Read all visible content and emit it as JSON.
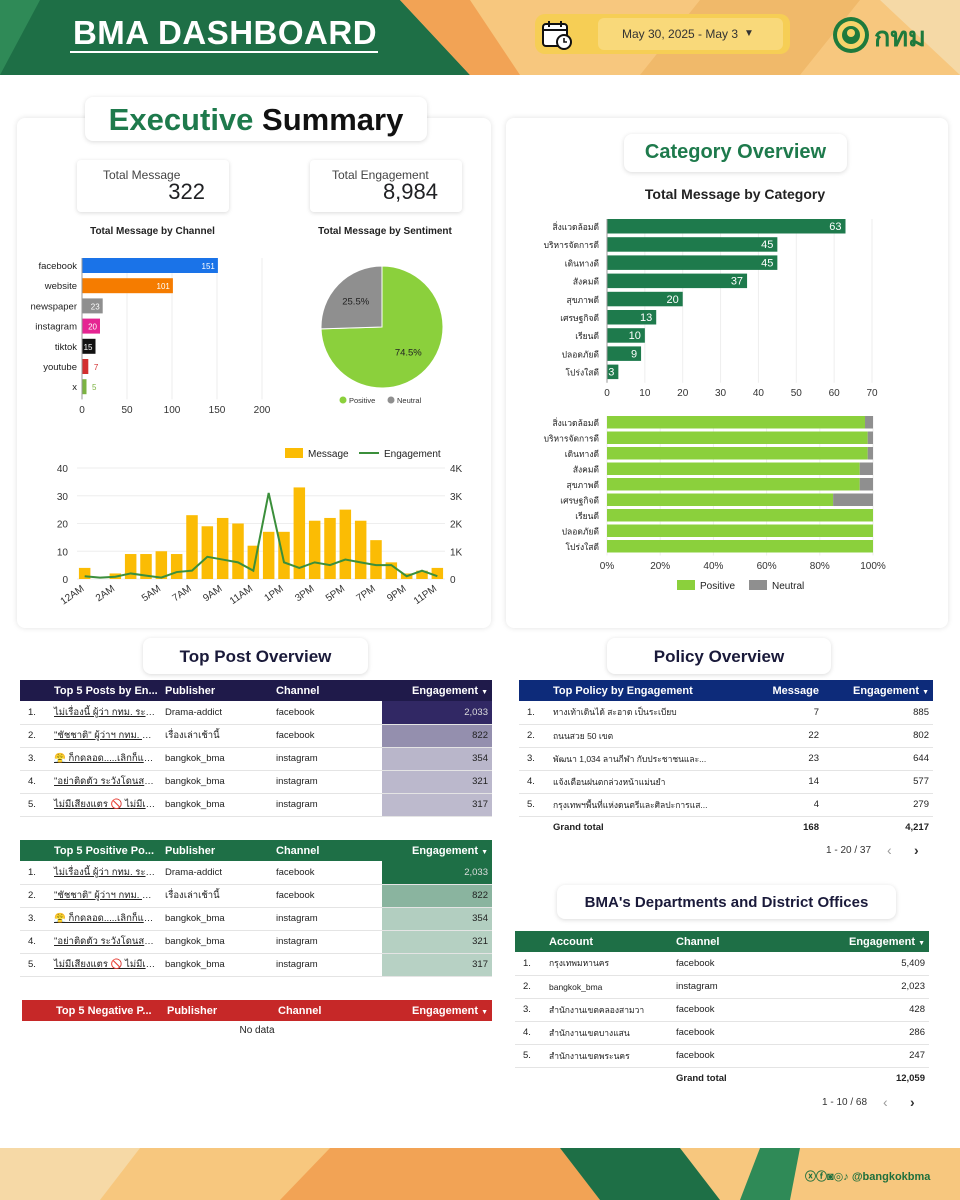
{
  "header": {
    "title": "BMA DASHBOARD",
    "date_range": "May 30, 2025 - May 3",
    "logo_text": "กทม",
    "colors": {
      "green": "#1e6f46",
      "orange": "#f2a355",
      "yellow": "#f6ce55"
    }
  },
  "executive": {
    "title_a": "Executive",
    "title_b": "Summary",
    "kpis": [
      {
        "label": "Total Message",
        "value": "322"
      },
      {
        "label": "Total Engagement",
        "value": "8,984"
      }
    ],
    "channel_title": "Total Message by Channel",
    "sentiment_title": "Total Message by Sentiment"
  },
  "category": {
    "title": "Category Overview",
    "chart_title": "Total Message by Category"
  },
  "top_post": {
    "title": "Top Post Overview",
    "tables": [
      {
        "headers": [
          "Top 5 Posts by En...",
          "Publisher",
          "Channel",
          "Engagement"
        ],
        "rows": [
          [
            "1.",
            "ไม่เรื่องนี้ ผู้ว่า กทม. ระบุว่า...",
            "Drama-addict",
            "facebook",
            "2,033"
          ],
          [
            "2.",
            "\"ชัชชาติ\" ผู้ว่าฯ กทม. แจง...",
            "เรื่องเล่าเช้านี้",
            "facebook",
            "822"
          ],
          [
            "3.",
            "😤 ก็กดลอด.....เลิกก็แล้ว...",
            "bangkok_bma",
            "instagram",
            "354"
          ],
          [
            "4.",
            "\"อย่าติดตัว ระวังโดนสอย!...",
            "bangkok_bma",
            "instagram",
            "321"
          ],
          [
            "5.",
            "ไม่มีเสียงแตร 🚫 ไม่มีเสีย...",
            "bangkok_bma",
            "instagram",
            "317"
          ]
        ]
      },
      {
        "headers": [
          "Top 5 Positive Po...",
          "Publisher",
          "Channel",
          "Engagement"
        ],
        "rows": [
          [
            "1.",
            "ไม่เรื่องนี้ ผู้ว่า กทม. ระบุว่า...",
            "Drama-addict",
            "facebook",
            "2,033"
          ],
          [
            "2.",
            "\"ชัชชาติ\" ผู้ว่าฯ กทม. แจง...",
            "เรื่องเล่าเช้านี้",
            "facebook",
            "822"
          ],
          [
            "3.",
            "😤 ก็กดลอด.....เลิกก็แล้ว...",
            "bangkok_bma",
            "instagram",
            "354"
          ],
          [
            "4.",
            "\"อย่าติดตัว ระวังโดนสอย!...",
            "bangkok_bma",
            "instagram",
            "321"
          ],
          [
            "5.",
            "ไม่มีเสียงแตร 🚫 ไม่มีเสีย...",
            "bangkok_bma",
            "instagram",
            "317"
          ]
        ]
      },
      {
        "headers": [
          "Top 5 Negative P...",
          "Publisher",
          "Channel",
          "Engagement"
        ],
        "rows": [],
        "empty": "No data"
      }
    ]
  },
  "policy": {
    "title": "Policy Overview",
    "headers": [
      "Top Policy by Engagement",
      "Message",
      "Engagement"
    ],
    "rows": [
      [
        "1.",
        "ทางเท้าเดินได้ สะอาด เป็นระเบียบ",
        "7",
        "885"
      ],
      [
        "2.",
        "ถนนสวย 50 เขต",
        "22",
        "802"
      ],
      [
        "3.",
        "พัฒนา 1,034 ลานกีฬา กับประชาชนและ...",
        "23",
        "644"
      ],
      [
        "4.",
        "แจ้งเตือนฝนตกล่วงหน้าแม่นยำ",
        "14",
        "577"
      ],
      [
        "5.",
        "กรุงเทพฯพื้นที่แห่งดนตรีและศิลปะการแส...",
        "4",
        "279"
      ]
    ],
    "total": [
      "Grand total",
      "168",
      "4,217"
    ],
    "pager": "1 - 20 / 37"
  },
  "departments": {
    "title": "BMA's Departments and District Offices",
    "headers": [
      "Account",
      "Channel",
      "Engagement"
    ],
    "rows": [
      [
        "1.",
        "กรุงเทพมหานคร",
        "facebook",
        "5,409"
      ],
      [
        "2.",
        "bangkok_bma",
        "instagram",
        "2,023"
      ],
      [
        "3.",
        "สำนักงานเขตคลองสามวา",
        "facebook",
        "428"
      ],
      [
        "4.",
        "สำนักงานเขตบางแสน",
        "facebook",
        "286"
      ],
      [
        "5.",
        "สำนักงานเขตพระนคร",
        "facebook",
        "247"
      ]
    ],
    "total": [
      "Grand total",
      "12,059"
    ],
    "pager": "1 - 10 / 68"
  },
  "footer": {
    "handle": "@bangkokbma"
  },
  "chart_data": [
    {
      "type": "bar",
      "orientation": "horizontal",
      "title": "Total Message by Channel",
      "categories": [
        "facebook",
        "website",
        "newspaper",
        "instagram",
        "tiktok",
        "youtube",
        "x"
      ],
      "values": [
        151,
        101,
        23,
        20,
        15,
        7,
        5
      ],
      "colors": [
        "#1a73e8",
        "#f57c00",
        "#8f8f8f",
        "#e52592",
        "#111111",
        "#d32f2f",
        "#7cb342"
      ],
      "xlim": [
        0,
        200
      ],
      "xticks": [
        0,
        50,
        100,
        150,
        200
      ]
    },
    {
      "type": "pie",
      "title": "Total Message by Sentiment",
      "labels": [
        "Positive",
        "Neutral"
      ],
      "values": [
        74.5,
        25.5
      ],
      "colors": [
        "#8bd03c",
        "#8f8f8f"
      ],
      "legend": "bottom"
    },
    {
      "type": "bar+line",
      "x": [
        "12AM",
        "1AM",
        "2AM",
        "3AM",
        "4AM",
        "5AM",
        "6AM",
        "7AM",
        "8AM",
        "9AM",
        "10AM",
        "11AM",
        "12PM",
        "1PM",
        "2PM",
        "3PM",
        "4PM",
        "5PM",
        "6PM",
        "7PM",
        "8PM",
        "9PM",
        "10PM",
        "11PM"
      ],
      "xtick_labels": [
        "12AM",
        "2AM",
        "5AM",
        "7AM",
        "9AM",
        "11AM",
        "1PM",
        "3PM",
        "5PM",
        "7PM",
        "9PM",
        "11PM"
      ],
      "series": [
        {
          "name": "Message",
          "type": "bar",
          "axis": "left",
          "color": "#fbbc04",
          "values": [
            4,
            0,
            2,
            9,
            9,
            10,
            9,
            23,
            19,
            22,
            20,
            12,
            17,
            17,
            33,
            21,
            22,
            25,
            21,
            14,
            6,
            2,
            3,
            4
          ]
        },
        {
          "name": "Engagement",
          "type": "line",
          "axis": "right",
          "color": "#3b8f3b",
          "values": [
            100,
            50,
            80,
            200,
            120,
            50,
            250,
            300,
            800,
            700,
            600,
            300,
            3100,
            600,
            400,
            600,
            500,
            700,
            600,
            500,
            500,
            100,
            300,
            100
          ]
        }
      ],
      "ylim_left": [
        0,
        40
      ],
      "yticks_left": [
        0,
        10,
        20,
        30,
        40
      ],
      "ylim_right": [
        0,
        4000
      ],
      "yticks_right": [
        "0",
        "1K",
        "2K",
        "3K",
        "4K"
      ],
      "legend": "top-right"
    },
    {
      "type": "bar",
      "orientation": "horizontal",
      "title": "Total Message by Category",
      "categories": [
        "สิ่งแวดล้อมดี",
        "บริหารจัดการดี",
        "เดินทางดี",
        "สังคมดี",
        "สุขภาพดี",
        "เศรษฐกิจดี",
        "เรียนดี",
        "ปลอดภัยดี",
        "โปร่งใสดี"
      ],
      "values": [
        63,
        45,
        45,
        37,
        20,
        13,
        10,
        9,
        3
      ],
      "color": "#1e7a4c",
      "xlim": [
        0,
        70
      ],
      "xticks": [
        0,
        10,
        20,
        30,
        40,
        50,
        60,
        70
      ]
    },
    {
      "type": "bar",
      "orientation": "horizontal",
      "stacked": "percent",
      "categories": [
        "สิ่งแวดล้อมดี",
        "บริหารจัดการดี",
        "เดินทางดี",
        "สังคมดี",
        "สุขภาพดี",
        "เศรษฐกิจดี",
        "เรียนดี",
        "ปลอดภัยดี",
        "โปร่งใสดี"
      ],
      "series": [
        {
          "name": "Positive",
          "color": "#8bd03c",
          "values": [
            97,
            98,
            98,
            95,
            95,
            85,
            100,
            100,
            100
          ]
        },
        {
          "name": "Neutral",
          "color": "#8f8f8f",
          "values": [
            3,
            2,
            2,
            5,
            5,
            15,
            0,
            0,
            0
          ]
        }
      ],
      "xticks": [
        "0%",
        "20%",
        "40%",
        "60%",
        "80%",
        "100%"
      ],
      "legend": "bottom"
    }
  ]
}
